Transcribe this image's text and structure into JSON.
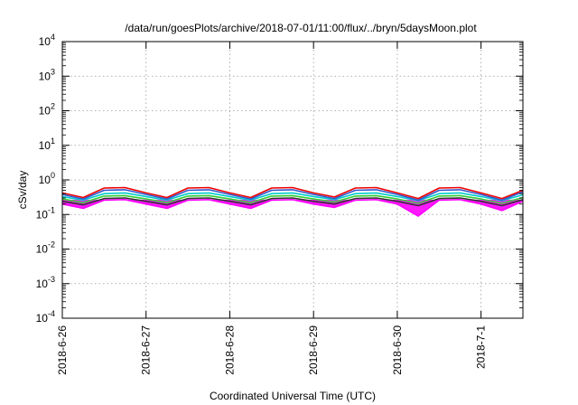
{
  "chart_data": {
    "type": "line",
    "title": "/data/run/goesPlots/archive/2018-07-01/11:00/flux/../bryn/5daysMoon.plot",
    "xlabel": "Coordinated Universal Time (UTC)",
    "ylabel": "cSv/day",
    "yscale": "log",
    "ylim": [
      0.0001,
      10000
    ],
    "xlim": [
      "2018-06-26",
      "2018-07-01 12:00"
    ],
    "grid": true,
    "xticks": [
      {
        "x": "2018-06-26",
        "label": "2018-6-26"
      },
      {
        "x": "2018-06-27",
        "label": "2018-6-27"
      },
      {
        "x": "2018-06-28",
        "label": "2018-6-28"
      },
      {
        "x": "2018-06-29",
        "label": "2018-6-29"
      },
      {
        "x": "2018-06-30",
        "label": "2018-6-30"
      },
      {
        "x": "2018-07-01",
        "label": "2018-7-1"
      }
    ],
    "yticks": [
      {
        "value": 0.0001,
        "mant": "10",
        "exp": "-4"
      },
      {
        "value": 0.001,
        "mant": "10",
        "exp": "-3"
      },
      {
        "value": 0.01,
        "mant": "10",
        "exp": "-2"
      },
      {
        "value": 0.1,
        "mant": "10",
        "exp": "-1"
      },
      {
        "value": 1,
        "mant": "10",
        "exp": "0"
      },
      {
        "value": 10,
        "mant": "10",
        "exp": "1"
      },
      {
        "value": 100,
        "mant": "10",
        "exp": "2"
      },
      {
        "value": 1000,
        "mant": "10",
        "exp": "3"
      },
      {
        "value": 10000,
        "mant": "10",
        "exp": "4"
      }
    ],
    "x": [
      "2018-06-26 00:00",
      "2018-06-26 06:00",
      "2018-06-26 12:00",
      "2018-06-26 18:00",
      "2018-06-27 00:00",
      "2018-06-27 06:00",
      "2018-06-27 12:00",
      "2018-06-27 18:00",
      "2018-06-28 00:00",
      "2018-06-28 06:00",
      "2018-06-28 12:00",
      "2018-06-28 18:00",
      "2018-06-29 00:00",
      "2018-06-29 06:00",
      "2018-06-29 12:00",
      "2018-06-29 18:00",
      "2018-06-30 00:00",
      "2018-06-30 06:00",
      "2018-06-30 12:00",
      "2018-06-30 18:00",
      "2018-07-01 00:00",
      "2018-07-01 06:00",
      "2018-07-01 12:00"
    ],
    "series": [
      {
        "color": "#ff00ff",
        "fill": true,
        "values": [
          0.2,
          0.15,
          0.26,
          0.27,
          0.2,
          0.15,
          0.26,
          0.27,
          0.2,
          0.15,
          0.26,
          0.27,
          0.2,
          0.16,
          0.26,
          0.27,
          0.2,
          0.09,
          0.26,
          0.27,
          0.2,
          0.13,
          0.24
        ]
      },
      {
        "color": "#333333",
        "values": [
          0.24,
          0.19,
          0.29,
          0.3,
          0.24,
          0.19,
          0.29,
          0.3,
          0.24,
          0.19,
          0.29,
          0.3,
          0.24,
          0.2,
          0.29,
          0.3,
          0.24,
          0.18,
          0.29,
          0.3,
          0.24,
          0.18,
          0.27
        ]
      },
      {
        "color": "#33cc33",
        "values": [
          0.28,
          0.22,
          0.34,
          0.35,
          0.28,
          0.22,
          0.34,
          0.35,
          0.28,
          0.22,
          0.34,
          0.35,
          0.28,
          0.23,
          0.34,
          0.35,
          0.28,
          0.21,
          0.34,
          0.35,
          0.28,
          0.21,
          0.31
        ]
      },
      {
        "color": "#00cccc",
        "values": [
          0.33,
          0.26,
          0.4,
          0.42,
          0.33,
          0.26,
          0.4,
          0.42,
          0.33,
          0.26,
          0.4,
          0.42,
          0.33,
          0.27,
          0.4,
          0.42,
          0.33,
          0.25,
          0.4,
          0.42,
          0.33,
          0.25,
          0.37
        ]
      },
      {
        "color": "#ee0000",
        "values": [
          0.42,
          0.31,
          0.58,
          0.6,
          0.42,
          0.31,
          0.58,
          0.6,
          0.42,
          0.31,
          0.58,
          0.6,
          0.42,
          0.32,
          0.58,
          0.6,
          0.42,
          0.29,
          0.58,
          0.6,
          0.42,
          0.29,
          0.5
        ]
      },
      {
        "color": "#3355cc",
        "values": [
          0.38,
          0.28,
          0.5,
          0.52,
          0.38,
          0.28,
          0.5,
          0.52,
          0.38,
          0.28,
          0.5,
          0.52,
          0.38,
          0.29,
          0.5,
          0.52,
          0.38,
          0.26,
          0.5,
          0.52,
          0.38,
          0.26,
          0.45
        ]
      }
    ]
  }
}
